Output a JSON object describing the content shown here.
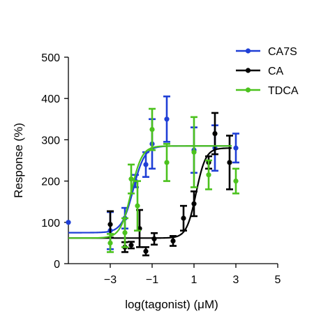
{
  "chart_data": {
    "type": "scatter",
    "title": "",
    "xlabel": "log(tagonist) (μM)",
    "ylabel": "Response (%)",
    "xlim": [
      -5,
      5
    ],
    "ylim": [
      0,
      500
    ],
    "xticks": [
      -3,
      -1,
      1,
      3,
      5
    ],
    "xtick_labels": [
      "−3",
      "−1",
      "1",
      "3",
      "5"
    ],
    "yticks": [
      0,
      100,
      200,
      300,
      400,
      500
    ],
    "ytick_labels": [
      "0",
      "100",
      "200",
      "300",
      "400",
      "500"
    ],
    "grid": false,
    "legend": "top-right",
    "series": [
      {
        "name": "CA7S",
        "color": "#1f3fd6",
        "fit": {
          "bottom": 75,
          "top": 285,
          "logEC50": -1.9,
          "hill": 1.6
        },
        "points": [
          {
            "x": -5.0,
            "y": 100,
            "err": 0
          },
          {
            "x": -3.0,
            "y": 80,
            "err": 45
          },
          {
            "x": -2.3,
            "y": 110,
            "err": 25
          },
          {
            "x": -1.8,
            "y": 200,
            "err": 15
          },
          {
            "x": -1.3,
            "y": 240,
            "err": 30
          },
          {
            "x": -1.0,
            "y": 290,
            "err": 60
          },
          {
            "x": -0.3,
            "y": 350,
            "err": 55
          },
          {
            "x": 1.0,
            "y": 275,
            "err": 55
          },
          {
            "x": 2.0,
            "y": 280,
            "err": 55
          },
          {
            "x": 3.0,
            "y": 280,
            "err": 35
          }
        ]
      },
      {
        "name": "CA",
        "color": "#000000",
        "fit": {
          "bottom": 62,
          "top": 280,
          "logEC50": 1.1,
          "hill": 1.9
        },
        "points": [
          {
            "x": -3.0,
            "y": 95,
            "err": 32
          },
          {
            "x": -2.3,
            "y": 40,
            "err": 12
          },
          {
            "x": -2.0,
            "y": 45,
            "err": 8
          },
          {
            "x": -1.6,
            "y": 85,
            "err": 45
          },
          {
            "x": -1.3,
            "y": 30,
            "err": 10
          },
          {
            "x": -0.9,
            "y": 60,
            "err": 14
          },
          {
            "x": 0.0,
            "y": 55,
            "err": 12
          },
          {
            "x": 0.5,
            "y": 110,
            "err": 30
          },
          {
            "x": 1.0,
            "y": 145,
            "err": 30
          },
          {
            "x": 1.7,
            "y": 245,
            "err": 15
          },
          {
            "x": 2.0,
            "y": 315,
            "err": 50
          },
          {
            "x": 2.7,
            "y": 245,
            "err": 65
          }
        ]
      },
      {
        "name": "TDCA",
        "color": "#4cc21e",
        "fit": {
          "bottom": 62,
          "top": 285,
          "logEC50": -2.0,
          "hill": 1.7
        },
        "points": [
          {
            "x": -3.0,
            "y": 50,
            "err": 22
          },
          {
            "x": -2.3,
            "y": 75,
            "err": 35
          },
          {
            "x": -2.0,
            "y": 205,
            "err": 35
          },
          {
            "x": -1.7,
            "y": 140,
            "err": 60
          },
          {
            "x": -1.0,
            "y": 325,
            "err": 50
          },
          {
            "x": -0.3,
            "y": 245,
            "err": 45
          },
          {
            "x": 1.0,
            "y": 270,
            "err": 85
          },
          {
            "x": 1.7,
            "y": 215,
            "err": 35
          },
          {
            "x": 3.0,
            "y": 200,
            "err": 30
          }
        ]
      }
    ]
  }
}
